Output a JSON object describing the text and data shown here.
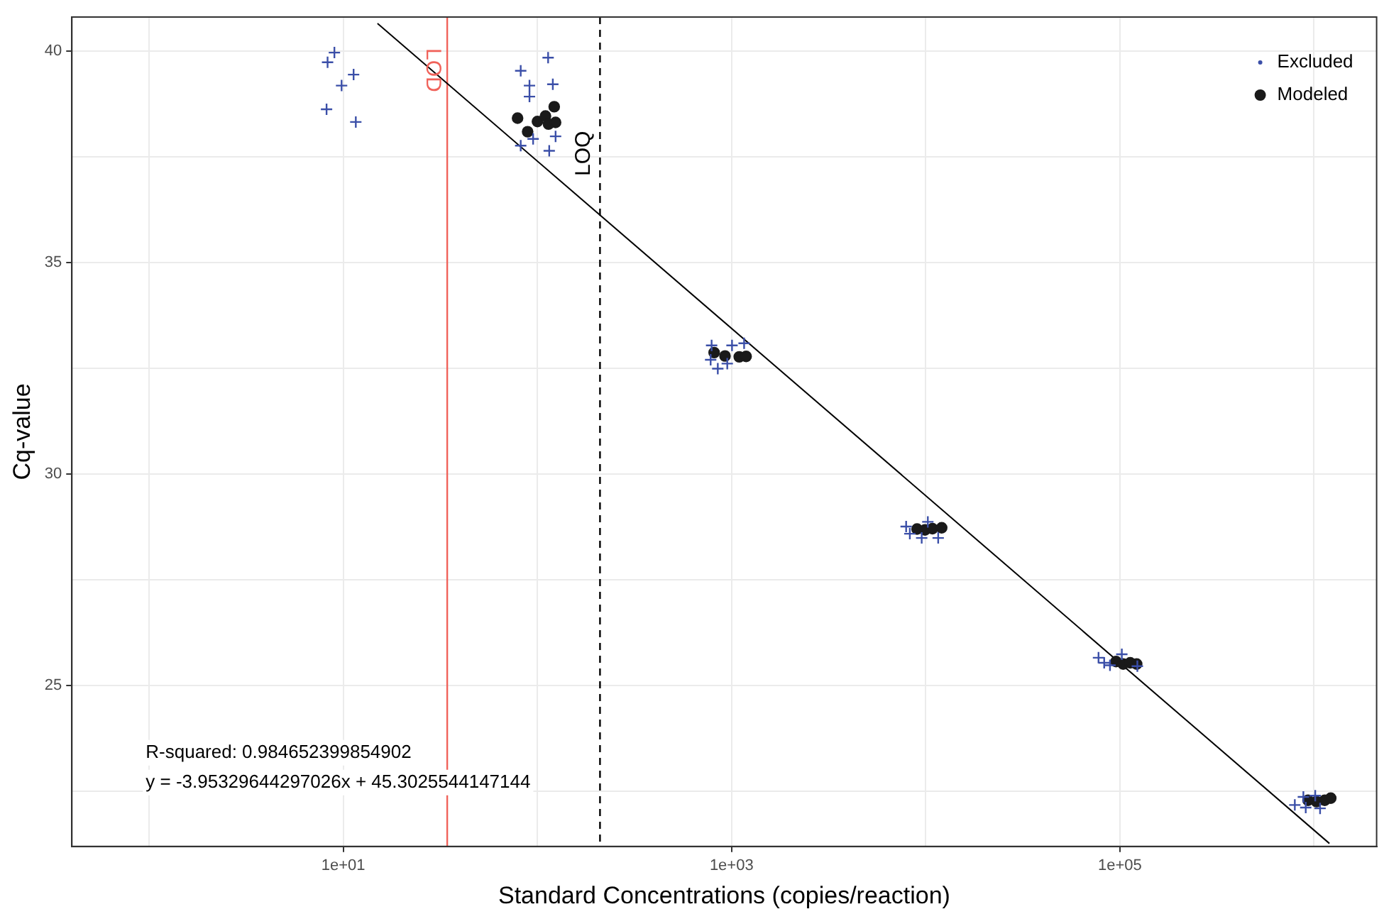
{
  "chart_data": {
    "type": "scatter",
    "xlabel": "Standard Concentrations (copies/reaction)",
    "ylabel": "Cq-value",
    "log": "x",
    "xlim": [
      0.4,
      2100000
    ],
    "xticks": [
      {
        "value": 1,
        "label": null
      },
      {
        "value": 10,
        "label": "1e+01"
      },
      {
        "value": 100,
        "label": null
      },
      {
        "value": 1000,
        "label": "1e+03"
      },
      {
        "value": 10000,
        "label": null
      },
      {
        "value": 100000,
        "label": "1e+05"
      },
      {
        "value": 1000000,
        "label": null
      }
    ],
    "ylim": [
      21.2,
      40.8
    ],
    "yticks": [
      {
        "value": 22.5,
        "label": null
      },
      25,
      {
        "value": 27.5,
        "label": null
      },
      30,
      {
        "value": 32.5,
        "label": null
      },
      35,
      {
        "value": 37.5,
        "label": null
      },
      40
    ],
    "grid": true,
    "legend": "top right",
    "series": [
      {
        "name": "Excluded",
        "marker": "cross",
        "color": "#3b4fa8",
        "x": [
          9.0,
          8.3,
          11.3,
          9.8,
          8.2,
          11.6,
          113.5,
          82,
          91,
          120,
          91,
          95,
          124,
          82,
          115,
          789,
          1005,
          1160,
          780,
          849,
          950,
          7925,
          8280,
          9530,
          10250,
          11590,
          77600,
          83000,
          88900,
          102300,
          123000,
          796000,
          881000,
          906000,
          1014000,
          1074000
        ],
        "values": [
          39.96,
          39.73,
          39.44,
          39.18,
          38.62,
          38.32,
          39.84,
          39.53,
          39.18,
          39.21,
          38.92,
          37.92,
          37.98,
          37.76,
          37.64,
          33.04,
          33.04,
          33.09,
          32.7,
          32.49,
          32.61,
          28.76,
          28.59,
          28.49,
          28.87,
          28.49,
          25.66,
          25.54,
          25.48,
          25.74,
          25.46,
          22.18,
          22.37,
          22.12,
          22.4,
          22.1
        ]
      },
      {
        "name": "Modeled",
        "marker": "circle",
        "color": "#1a1a1a",
        "x": [
          79,
          89,
          100,
          110,
          122,
          114,
          124,
          813,
          925,
          1095,
          1188,
          9020,
          9910,
          10830,
          12080,
          95500,
          104000,
          113000,
          122000,
          931000,
          1030000,
          1135000,
          1219000
        ],
        "values": [
          38.41,
          38.09,
          38.33,
          38.46,
          38.68,
          38.27,
          38.31,
          32.87,
          32.79,
          32.77,
          32.78,
          28.7,
          28.68,
          28.71,
          28.73,
          25.57,
          25.51,
          25.54,
          25.51,
          22.29,
          22.26,
          22.29,
          22.34
        ]
      },
      {
        "type": "line",
        "color": "#000000",
        "x": [
          15,
          1200000
        ],
        "values": [
          40.65,
          21.27
        ]
      }
    ],
    "ref_lines": [
      {
        "axis": "x",
        "value": 34.3,
        "label": "LOD",
        "color": "#f0625a",
        "line_style": "solid"
      },
      {
        "axis": "x",
        "value": 210,
        "label": "LOQ",
        "color": "#000000",
        "line_style": "dashed"
      }
    ],
    "annotations": [
      "R-squared: 0.984652399854902",
      "y = -3.95329644297026x + 45.3025544147144"
    ]
  }
}
